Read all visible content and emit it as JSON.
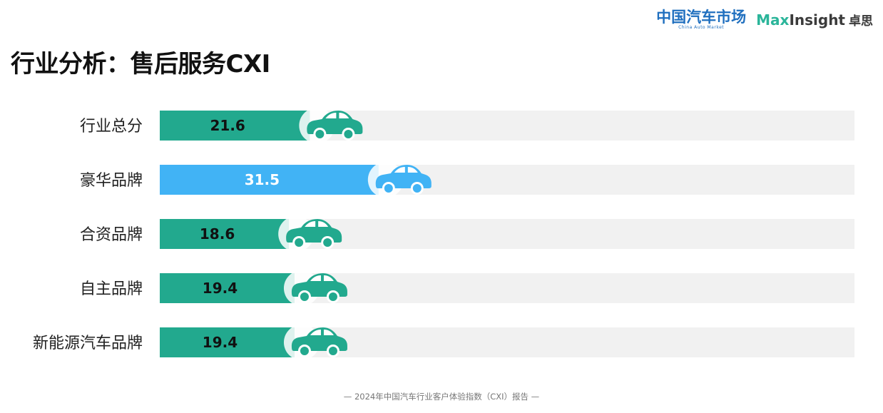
{
  "header": {
    "logo_cam_cn": "中国汽车市场",
    "logo_cam_en": "China Auto Market",
    "logo_mi_prefix": "Max",
    "logo_mi_suffix": "Insight",
    "logo_mi_cn": "卓思"
  },
  "page_title": "行业分析：售后服务CXI",
  "footer": "— 2024年中国汽车行业客户体验指数（CXI）报告 —",
  "colors": {
    "accent_teal": "#22A98E",
    "accent_blue": "#41B3F5",
    "track_gray": "#F1F1F1"
  },
  "chart_data": {
    "type": "bar",
    "orientation": "horizontal",
    "categories": [
      "行业总分",
      "豪华品牌",
      "合资品牌",
      "自主品牌",
      "新能源汽车品牌"
    ],
    "values": [
      21.6,
      31.5,
      18.6,
      19.4,
      19.4
    ],
    "value_labels": [
      "21.6",
      "31.5",
      "18.6",
      "19.4",
      "19.4"
    ],
    "bar_colors": [
      "#22A98E",
      "#41B3F5",
      "#22A98E",
      "#22A98E",
      "#22A98E"
    ],
    "label_colors": [
      "#111111",
      "#ffffff",
      "#111111",
      "#111111",
      "#111111"
    ],
    "xlim": [
      0,
      100
    ],
    "grid": false,
    "legend": "none",
    "marker_icon": "car-icon"
  }
}
